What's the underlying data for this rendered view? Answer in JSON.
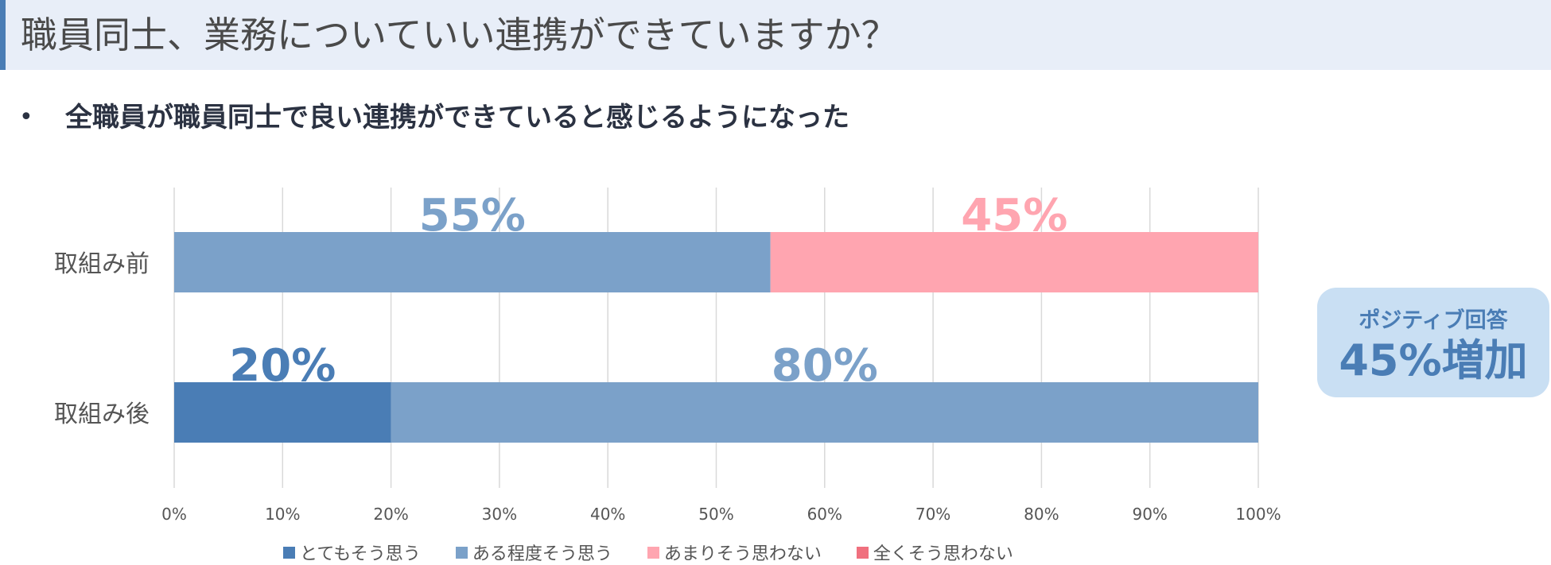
{
  "slide": {
    "title": "職員同士、業務についていい連携ができていますか？",
    "bullet": "全職員が職員同士で良い連携ができていると感じるようになった",
    "callout": {
      "line1": "ポジティブ回答",
      "line2": "45%増加"
    }
  },
  "colors": {
    "とてもそう思う": "#4a7db5",
    "ある程度そう思う": "#7ba1c9",
    "あまりそう思わない": "#ffa5b0",
    "全くそう思わない": "#f0707e"
  },
  "chart_data": {
    "type": "bar",
    "orientation": "horizontal",
    "stacked": true,
    "categories": [
      "取組み前",
      "取組み後"
    ],
    "series": [
      {
        "name": "とてもそう思う",
        "values": [
          0,
          20
        ]
      },
      {
        "name": "ある程度そう思う",
        "values": [
          55,
          80
        ]
      },
      {
        "name": "あまりそう思わない",
        "values": [
          45,
          0
        ]
      },
      {
        "name": "全くそう思わない",
        "values": [
          0,
          0
        ]
      }
    ],
    "data_labels": [
      {
        "category": "取組み前",
        "series": "ある程度そう思う",
        "text": "55%"
      },
      {
        "category": "取組み前",
        "series": "あまりそう思わない",
        "text": "45%"
      },
      {
        "category": "取組み後",
        "series": "とてもそう思う",
        "text": "20%"
      },
      {
        "category": "取組み後",
        "series": "ある程度そう思う",
        "text": "80%"
      }
    ],
    "xlim": [
      0,
      100
    ],
    "xticks": [
      0,
      10,
      20,
      30,
      40,
      50,
      60,
      70,
      80,
      90,
      100
    ],
    "xtick_labels": [
      "0%",
      "10%",
      "20%",
      "30%",
      "40%",
      "50%",
      "60%",
      "70%",
      "80%",
      "90%",
      "100%"
    ],
    "grid": true,
    "legend_position": "bottom"
  }
}
